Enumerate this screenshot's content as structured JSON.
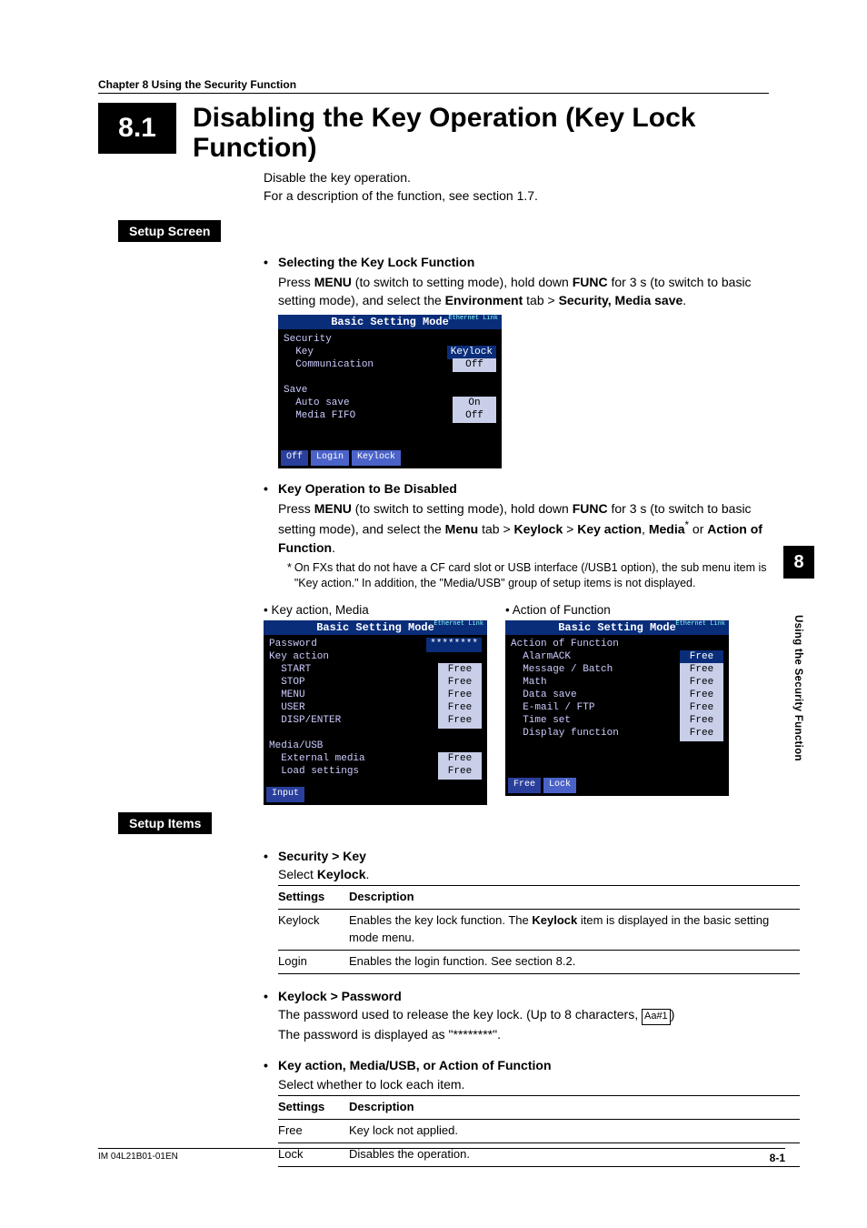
{
  "chapter_line": "Chapter 8    Using the Security Function",
  "section_number": "8.1",
  "section_title_l1": "Disabling the Key Operation (Key Lock",
  "section_title_l2": "Function)",
  "intro_l1": "Disable the key operation.",
  "intro_l2": "For a description of the function, see section 1.7.",
  "setup_screen_label": "Setup Screen",
  "bullet1_title": "Selecting the Key Lock Function",
  "bullet1_p_pre": "Press ",
  "bullet1_menu": "MENU",
  "bullet1_p_mid": " (to switch to setting mode), hold down ",
  "bullet1_func": "FUNC",
  "bullet1_p_mid2": " for 3 s (to switch to basic setting mode), and select the ",
  "bullet1_env": "Environment",
  "bullet1_gt": " tab > ",
  "bullet1_sec": "Security, Media save",
  "screen_common_title": "Basic Setting Mode",
  "screen_eth": "Ethernet\nLink",
  "screen1": {
    "lines": [
      {
        "label": "Security"
      },
      {
        "label": "  Key",
        "value": "Keylock",
        "sel": true
      },
      {
        "label": "  Communication",
        "value": "Off"
      },
      {
        "label": " "
      },
      {
        "label": "Save"
      },
      {
        "label": "  Auto save",
        "value": "On"
      },
      {
        "label": "  Media FIFO",
        "value": "Off"
      }
    ],
    "footer": [
      "Off",
      "Login",
      "Keylock"
    ]
  },
  "bullet2_title": "Key Operation to Be Disabled",
  "bullet2_p_pre": "Press ",
  "bullet2_menu": "MENU",
  "bullet2_p_mid": " (to switch to setting mode), hold down ",
  "bullet2_func": "FUNC",
  "bullet2_p_mid2": " for 3 s (to switch to basic setting mode), and select the ",
  "bullet2_menu2": "Menu",
  "bullet2_gt1": " tab > ",
  "bullet2_keylock": "Keylock",
  "bullet2_gt2": " > ",
  "bullet2_keyaction": "Key action",
  "bullet2_comma": ", ",
  "bullet2_media": "Media",
  "bullet2_star": "*",
  "bullet2_or": " or ",
  "bullet2_aof": "Action of Function",
  "bullet2_period": ".",
  "note_ast": "*",
  "note_text": "On FXs that do not have a CF card slot or USB interface (/USB1 option), the sub menu item is \"Key action.\" In addition, the \"Media/USB\" group of setup items is not displayed.",
  "caption_left": "• Key action, Media",
  "caption_right": "• Action of Function",
  "screen2": {
    "lines": [
      {
        "label": "Password",
        "value": "********",
        "sel": true
      },
      {
        "label": "Key action"
      },
      {
        "label": "  START",
        "value": "Free"
      },
      {
        "label": "  STOP",
        "value": "Free"
      },
      {
        "label": "  MENU",
        "value": "Free"
      },
      {
        "label": "  USER",
        "value": "Free"
      },
      {
        "label": "  DISP/ENTER",
        "value": "Free"
      },
      {
        "label": " "
      },
      {
        "label": "Media/USB"
      },
      {
        "label": "  External media",
        "value": "Free"
      },
      {
        "label": "  Load settings",
        "value": "Free"
      }
    ],
    "footer": [
      "Input"
    ]
  },
  "screen3": {
    "lines": [
      {
        "label": "Action of Function"
      },
      {
        "label": "  AlarmACK",
        "value": "Free",
        "sel": true
      },
      {
        "label": "  Message / Batch",
        "value": "Free"
      },
      {
        "label": "  Math",
        "value": "Free"
      },
      {
        "label": "  Data save",
        "value": "Free"
      },
      {
        "label": "  E-mail / FTP",
        "value": "Free"
      },
      {
        "label": "  Time set",
        "value": "Free"
      },
      {
        "label": "  Display function",
        "value": "Free"
      }
    ],
    "footer": [
      "Free",
      "Lock"
    ]
  },
  "setup_items_label": "Setup Items",
  "si1_title": "Security > Key",
  "si1_sub_pre": "Select ",
  "si1_sub_b": "Keylock",
  "si1_sub_post": ".",
  "tbl1": {
    "h1": "Settings",
    "h2": "Description",
    "rows": [
      {
        "c1": "Keylock",
        "c2_pre": "Enables the key lock function. The ",
        "c2_b": "Keylock",
        "c2_post": " item is displayed in the basic setting mode menu."
      },
      {
        "c1": "Login",
        "c2": "Enables the login function. See section 8.2."
      }
    ]
  },
  "si2_title": "Keylock > Password",
  "si2_l1_pre": "The password used to release the key lock. (Up to 8 characters, ",
  "si2_icon": "Aa#1",
  "si2_l1_post": ")",
  "si2_l2": "The password is displayed as \"********\".",
  "si3_title": "Key action, Media/USB, or Action of Function",
  "si3_sub": "Select whether to lock each item.",
  "tbl2": {
    "h1": "Settings",
    "h2": "Description",
    "rows": [
      {
        "c1": "Free",
        "c2": "Key lock not applied."
      },
      {
        "c1": "Lock",
        "c2": "Disables the operation."
      }
    ]
  },
  "side_num": "8",
  "side_text": "Using the Security Function",
  "footer_left": "IM 04L21B01-01EN",
  "footer_right": "8-1"
}
